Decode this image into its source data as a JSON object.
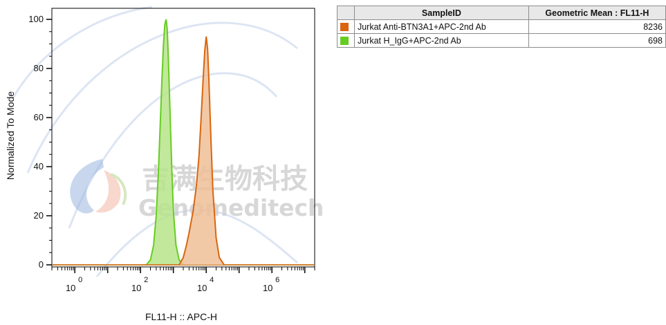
{
  "chart_data": {
    "type": "area",
    "xlabel": "FL11-H :: APC-H",
    "ylabel": "Normalized To Mode",
    "x_scale": "log",
    "x_ticks": [
      {
        "base": "10",
        "exp": "0",
        "value": 1
      },
      {
        "base": "10",
        "exp": "2",
        "value": 100
      },
      {
        "base": "10",
        "exp": "4",
        "value": 10000
      },
      {
        "base": "10",
        "exp": "6",
        "value": 1000000
      }
    ],
    "xlim": [
      0.2,
      20000000
    ],
    "ylim": [
      0,
      105
    ],
    "y_ticks": [
      0,
      20,
      40,
      60,
      80,
      100
    ],
    "series": [
      {
        "name": "Jurkat H_IgG+APC-2nd Ab",
        "line_color": "#66cc22",
        "fill_color": "#b6e48a",
        "x": [
          150,
          200,
          250,
          300,
          350,
          400,
          450,
          500,
          550,
          600,
          650,
          700,
          800,
          900,
          1000,
          1200,
          1500,
          2000
        ],
        "y": [
          0,
          2,
          8,
          20,
          38,
          58,
          76,
          90,
          98,
          100,
          96,
          85,
          60,
          38,
          22,
          8,
          2,
          0
        ]
      },
      {
        "name": "Jurkat Anti-BTN3A1+APC-2nd Ab",
        "line_color": "#d9650f",
        "fill_color": "#f0bf98",
        "x": [
          1500,
          2000,
          2500,
          3000,
          4000,
          5000,
          6000,
          7000,
          8000,
          9000,
          10000,
          11000,
          12000,
          14000,
          16000,
          20000,
          25000,
          35000
        ],
        "y": [
          0,
          3,
          8,
          13,
          22,
          32,
          44,
          60,
          75,
          87,
          93,
          88,
          76,
          50,
          30,
          11,
          3,
          0
        ]
      }
    ]
  },
  "legend_table": {
    "headers": [
      "SampleID",
      "Geometric Mean : FL11-H"
    ],
    "rows": [
      {
        "color": "#d9650f",
        "name": "Jurkat Anti-BTN3A1+APC-2nd Ab",
        "value": "8236"
      },
      {
        "color": "#66cc22",
        "name": "Jurkat H_IgG+APC-2nd Ab",
        "value": "698"
      }
    ]
  },
  "watermark": {
    "cn_text": "吉满生物科技",
    "en_text": "Genomeditech"
  }
}
